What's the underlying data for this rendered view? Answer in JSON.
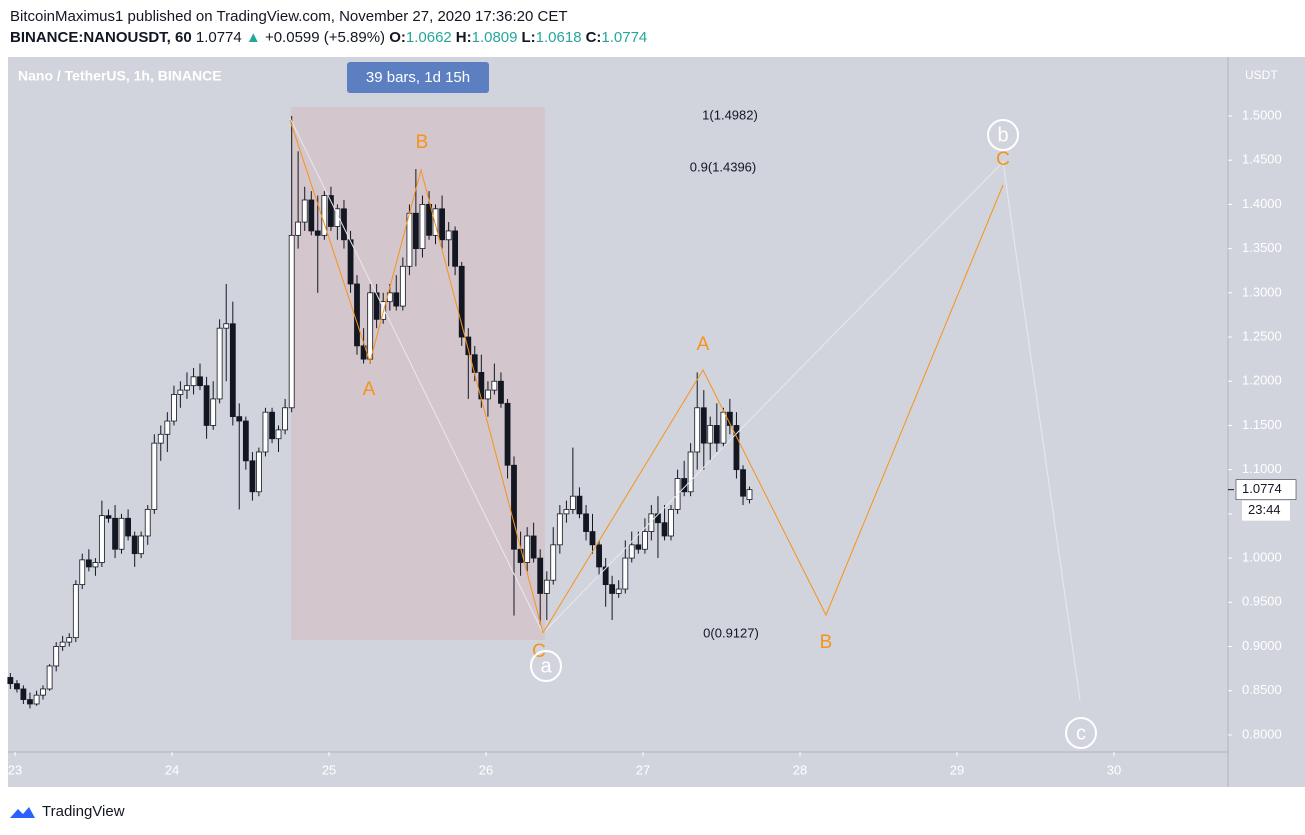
{
  "header": {
    "publisher": "BitcoinMaximus1 published on TradingView.com, November 27, 2020 17:36:20 CET",
    "symbol": "BINANCE:NANOUSDT, 60",
    "last": "1.0774",
    "arrow": "▲",
    "change": "+0.0599 (+5.89%)",
    "ohlc": [
      {
        "label": "O:",
        "value": "1.0662"
      },
      {
        "label": "H:",
        "value": "1.0809"
      },
      {
        "label": "L:",
        "value": "1.0618"
      },
      {
        "label": "C:",
        "value": "1.0774"
      }
    ]
  },
  "footer": {
    "brand": "TradingView"
  },
  "chart_data": {
    "type": "candlestick",
    "legend": "Nano / TetherUS, 1h, BINANCE",
    "range_label": "39 bars, 1d 15h",
    "currency": "USDT",
    "last_price_label": "1.0774",
    "countdown": "23:44",
    "fib_labels": [
      "1(1.4982)",
      "0.9(1.4396)",
      "0(0.9127)"
    ],
    "wave_labels": [
      "A",
      "B",
      "C",
      "A",
      "B",
      "C"
    ],
    "circle_labels": [
      "a",
      "b",
      "c"
    ],
    "up_color": "#ffffff",
    "down_color": "#131722",
    "xlim": [
      22.955,
      30.726
    ],
    "xticks": [
      23,
      24,
      25,
      26,
      27,
      28,
      29,
      30
    ],
    "ylim": [
      0.7807,
      1.5667
    ],
    "yticks": [
      {
        "value": 0.8,
        "label": "0.8000"
      },
      {
        "value": 0.85,
        "label": "0.8500"
      },
      {
        "value": 0.9,
        "label": "0.9000"
      },
      {
        "value": 0.95,
        "label": "0.9500"
      },
      {
        "value": 1.0,
        "label": "1.0000"
      },
      {
        "value": 1.05,
        "label": "1.0500"
      },
      {
        "value": 1.1,
        "label": "1.1000"
      },
      {
        "value": 1.15,
        "label": "1.1500"
      },
      {
        "value": 1.2,
        "label": "1.2000"
      },
      {
        "value": 1.25,
        "label": "1.2500"
      },
      {
        "value": 1.3,
        "label": "1.3000"
      },
      {
        "value": 1.35,
        "label": "1.3500"
      },
      {
        "value": 1.4,
        "label": "1.4000"
      },
      {
        "value": 1.45,
        "label": "1.4500"
      },
      {
        "value": 1.5,
        "label": "1.5000"
      }
    ],
    "x": [
      22.97,
      23.012,
      23.053,
      23.095,
      23.137,
      23.178,
      23.22,
      23.262,
      23.303,
      23.345,
      23.387,
      23.428,
      23.47,
      23.512,
      23.553,
      23.595,
      23.637,
      23.678,
      23.72,
      23.762,
      23.803,
      23.845,
      23.887,
      23.928,
      23.97,
      24.012,
      24.053,
      24.095,
      24.137,
      24.178,
      24.22,
      24.262,
      24.303,
      24.345,
      24.387,
      24.428,
      24.47,
      24.512,
      24.553,
      24.595,
      24.637,
      24.678,
      24.72,
      24.762,
      24.803,
      24.845,
      24.887,
      24.928,
      24.97,
      25.012,
      25.053,
      25.095,
      25.137,
      25.178,
      25.22,
      25.262,
      25.303,
      25.345,
      25.387,
      25.428,
      25.47,
      25.512,
      25.553,
      25.595,
      25.637,
      25.678,
      25.72,
      25.762,
      25.803,
      25.845,
      25.887,
      25.928,
      25.97,
      26.012,
      26.053,
      26.095,
      26.137,
      26.178,
      26.22,
      26.262,
      26.303,
      26.345,
      26.387,
      26.428,
      26.47,
      26.512,
      26.553,
      26.595,
      26.637,
      26.678,
      26.72,
      26.762,
      26.803,
      26.845,
      26.887,
      26.928,
      26.97,
      27.012,
      27.053,
      27.095,
      27.137,
      27.178,
      27.22,
      27.262,
      27.303,
      27.345,
      27.387,
      27.428,
      27.47,
      27.512,
      27.553,
      27.595,
      27.637,
      27.678
    ],
    "ohlc": [
      [
        0.865,
        0.87,
        0.852,
        0.858
      ],
      [
        0.858,
        0.862,
        0.848,
        0.852
      ],
      [
        0.852,
        0.856,
        0.835,
        0.84
      ],
      [
        0.84,
        0.848,
        0.83,
        0.835
      ],
      [
        0.835,
        0.85,
        0.833,
        0.845
      ],
      [
        0.845,
        0.856,
        0.84,
        0.852
      ],
      [
        0.852,
        0.88,
        0.85,
        0.878
      ],
      [
        0.878,
        0.905,
        0.872,
        0.9
      ],
      [
        0.9,
        0.912,
        0.895,
        0.905
      ],
      [
        0.905,
        0.915,
        0.9,
        0.91
      ],
      [
        0.91,
        0.975,
        0.905,
        0.97
      ],
      [
        0.97,
        1.005,
        0.965,
        0.998
      ],
      [
        0.998,
        1.01,
        0.985,
        0.99
      ],
      [
        0.99,
        1.0,
        0.98,
        0.995
      ],
      [
        0.995,
        1.065,
        0.99,
        1.048
      ],
      [
        1.048,
        1.055,
        1.04,
        1.045
      ],
      [
        1.045,
        1.06,
        1.0,
        1.01
      ],
      [
        1.01,
        1.05,
        1.005,
        1.045
      ],
      [
        1.045,
        1.055,
        1.02,
        1.025
      ],
      [
        1.025,
        1.03,
        0.99,
        1.005
      ],
      [
        1.005,
        1.03,
        1.0,
        1.025
      ],
      [
        1.025,
        1.06,
        1.015,
        1.055
      ],
      [
        1.055,
        1.14,
        1.05,
        1.13
      ],
      [
        1.13,
        1.15,
        1.11,
        1.14
      ],
      [
        1.14,
        1.165,
        1.12,
        1.155
      ],
      [
        1.155,
        1.195,
        1.15,
        1.185
      ],
      [
        1.185,
        1.2,
        1.17,
        1.19
      ],
      [
        1.19,
        1.21,
        1.18,
        1.195
      ],
      [
        1.195,
        1.215,
        1.185,
        1.205
      ],
      [
        1.205,
        1.22,
        1.19,
        1.195
      ],
      [
        1.195,
        1.205,
        1.135,
        1.15
      ],
      [
        1.15,
        1.2,
        1.145,
        1.18
      ],
      [
        1.18,
        1.27,
        1.175,
        1.26
      ],
      [
        1.26,
        1.31,
        1.2,
        1.265
      ],
      [
        1.265,
        1.29,
        1.15,
        1.16
      ],
      [
        1.16,
        1.175,
        1.055,
        1.155
      ],
      [
        1.155,
        1.16,
        1.1,
        1.11
      ],
      [
        1.11,
        1.12,
        1.065,
        1.075
      ],
      [
        1.075,
        1.125,
        1.07,
        1.12
      ],
      [
        1.12,
        1.17,
        1.115,
        1.165
      ],
      [
        1.165,
        1.17,
        1.13,
        1.135
      ],
      [
        1.135,
        1.15,
        1.12,
        1.145
      ],
      [
        1.145,
        1.18,
        1.14,
        1.17
      ],
      [
        1.17,
        1.5,
        1.165,
        1.365
      ],
      [
        1.365,
        1.46,
        1.35,
        1.38
      ],
      [
        1.38,
        1.42,
        1.37,
        1.405
      ],
      [
        1.405,
        1.415,
        1.365,
        1.37
      ],
      [
        1.37,
        1.41,
        1.3,
        1.365
      ],
      [
        1.365,
        1.415,
        1.36,
        1.41
      ],
      [
        1.41,
        1.42,
        1.37,
        1.375
      ],
      [
        1.375,
        1.4,
        1.36,
        1.395
      ],
      [
        1.395,
        1.405,
        1.35,
        1.36
      ],
      [
        1.36,
        1.37,
        1.3,
        1.31
      ],
      [
        1.31,
        1.32,
        1.23,
        1.24
      ],
      [
        1.24,
        1.26,
        1.22,
        1.225
      ],
      [
        1.225,
        1.31,
        1.22,
        1.3
      ],
      [
        1.3,
        1.31,
        1.26,
        1.27
      ],
      [
        1.27,
        1.3,
        1.265,
        1.29
      ],
      [
        1.29,
        1.31,
        1.28,
        1.3
      ],
      [
        1.3,
        1.32,
        1.28,
        1.285
      ],
      [
        1.285,
        1.34,
        1.28,
        1.33
      ],
      [
        1.33,
        1.4,
        1.32,
        1.39
      ],
      [
        1.39,
        1.44,
        1.33,
        1.35
      ],
      [
        1.35,
        1.41,
        1.34,
        1.4
      ],
      [
        1.4,
        1.415,
        1.36,
        1.365
      ],
      [
        1.365,
        1.4,
        1.355,
        1.395
      ],
      [
        1.395,
        1.41,
        1.35,
        1.36
      ],
      [
        1.36,
        1.38,
        1.33,
        1.37
      ],
      [
        1.37,
        1.375,
        1.32,
        1.33
      ],
      [
        1.33,
        1.335,
        1.24,
        1.25
      ],
      [
        1.25,
        1.26,
        1.18,
        1.23
      ],
      [
        1.23,
        1.24,
        1.2,
        1.21
      ],
      [
        1.21,
        1.23,
        1.17,
        1.18
      ],
      [
        1.18,
        1.2,
        1.16,
        1.19
      ],
      [
        1.19,
        1.22,
        1.185,
        1.2
      ],
      [
        1.2,
        1.21,
        1.17,
        1.175
      ],
      [
        1.175,
        1.18,
        1.09,
        1.105
      ],
      [
        1.105,
        1.115,
        0.935,
        1.01
      ],
      [
        1.01,
        1.03,
        0.98,
        0.995
      ],
      [
        0.995,
        1.035,
        0.985,
        1.025
      ],
      [
        1.025,
        1.04,
        0.995,
        1.0
      ],
      [
        1.0,
        1.01,
        0.925,
        0.96
      ],
      [
        0.96,
        0.985,
        0.93,
        0.975
      ],
      [
        0.975,
        1.035,
        0.97,
        1.015
      ],
      [
        1.015,
        1.06,
        1.005,
        1.05
      ],
      [
        1.05,
        1.065,
        1.04,
        1.055
      ],
      [
        1.055,
        1.125,
        1.05,
        1.07
      ],
      [
        1.07,
        1.08,
        1.045,
        1.05
      ],
      [
        1.05,
        1.06,
        1.02,
        1.03
      ],
      [
        1.03,
        1.05,
        1.005,
        1.015
      ],
      [
        1.015,
        1.02,
        0.98,
        0.99
      ],
      [
        0.99,
        1.0,
        0.945,
        0.97
      ],
      [
        0.97,
        0.98,
        0.93,
        0.96
      ],
      [
        0.96,
        0.975,
        0.955,
        0.965
      ],
      [
        0.965,
        1.02,
        0.96,
        1.0
      ],
      [
        1.0,
        1.03,
        0.995,
        1.015
      ],
      [
        1.015,
        1.03,
        1.005,
        1.01
      ],
      [
        1.01,
        1.045,
        1.005,
        1.03
      ],
      [
        1.03,
        1.06,
        1.02,
        1.05
      ],
      [
        1.05,
        1.07,
        1.0,
        1.04
      ],
      [
        1.04,
        1.06,
        1.02,
        1.025
      ],
      [
        1.025,
        1.06,
        1.02,
        1.055
      ],
      [
        1.055,
        1.1,
        1.05,
        1.09
      ],
      [
        1.09,
        1.11,
        1.07,
        1.075
      ],
      [
        1.075,
        1.13,
        1.07,
        1.12
      ],
      [
        1.12,
        1.21,
        1.1,
        1.17
      ],
      [
        1.17,
        1.19,
        1.1,
        1.13
      ],
      [
        1.13,
        1.16,
        1.11,
        1.15
      ],
      [
        1.15,
        1.175,
        1.12,
        1.13
      ],
      [
        1.13,
        1.17,
        1.125,
        1.165
      ],
      [
        1.165,
        1.18,
        1.14,
        1.15
      ],
      [
        1.15,
        1.165,
        1.09,
        1.1
      ],
      [
        1.1,
        1.105,
        1.06,
        1.07
      ],
      [
        1.0662,
        1.0809,
        1.0618,
        1.0774
      ]
    ]
  }
}
